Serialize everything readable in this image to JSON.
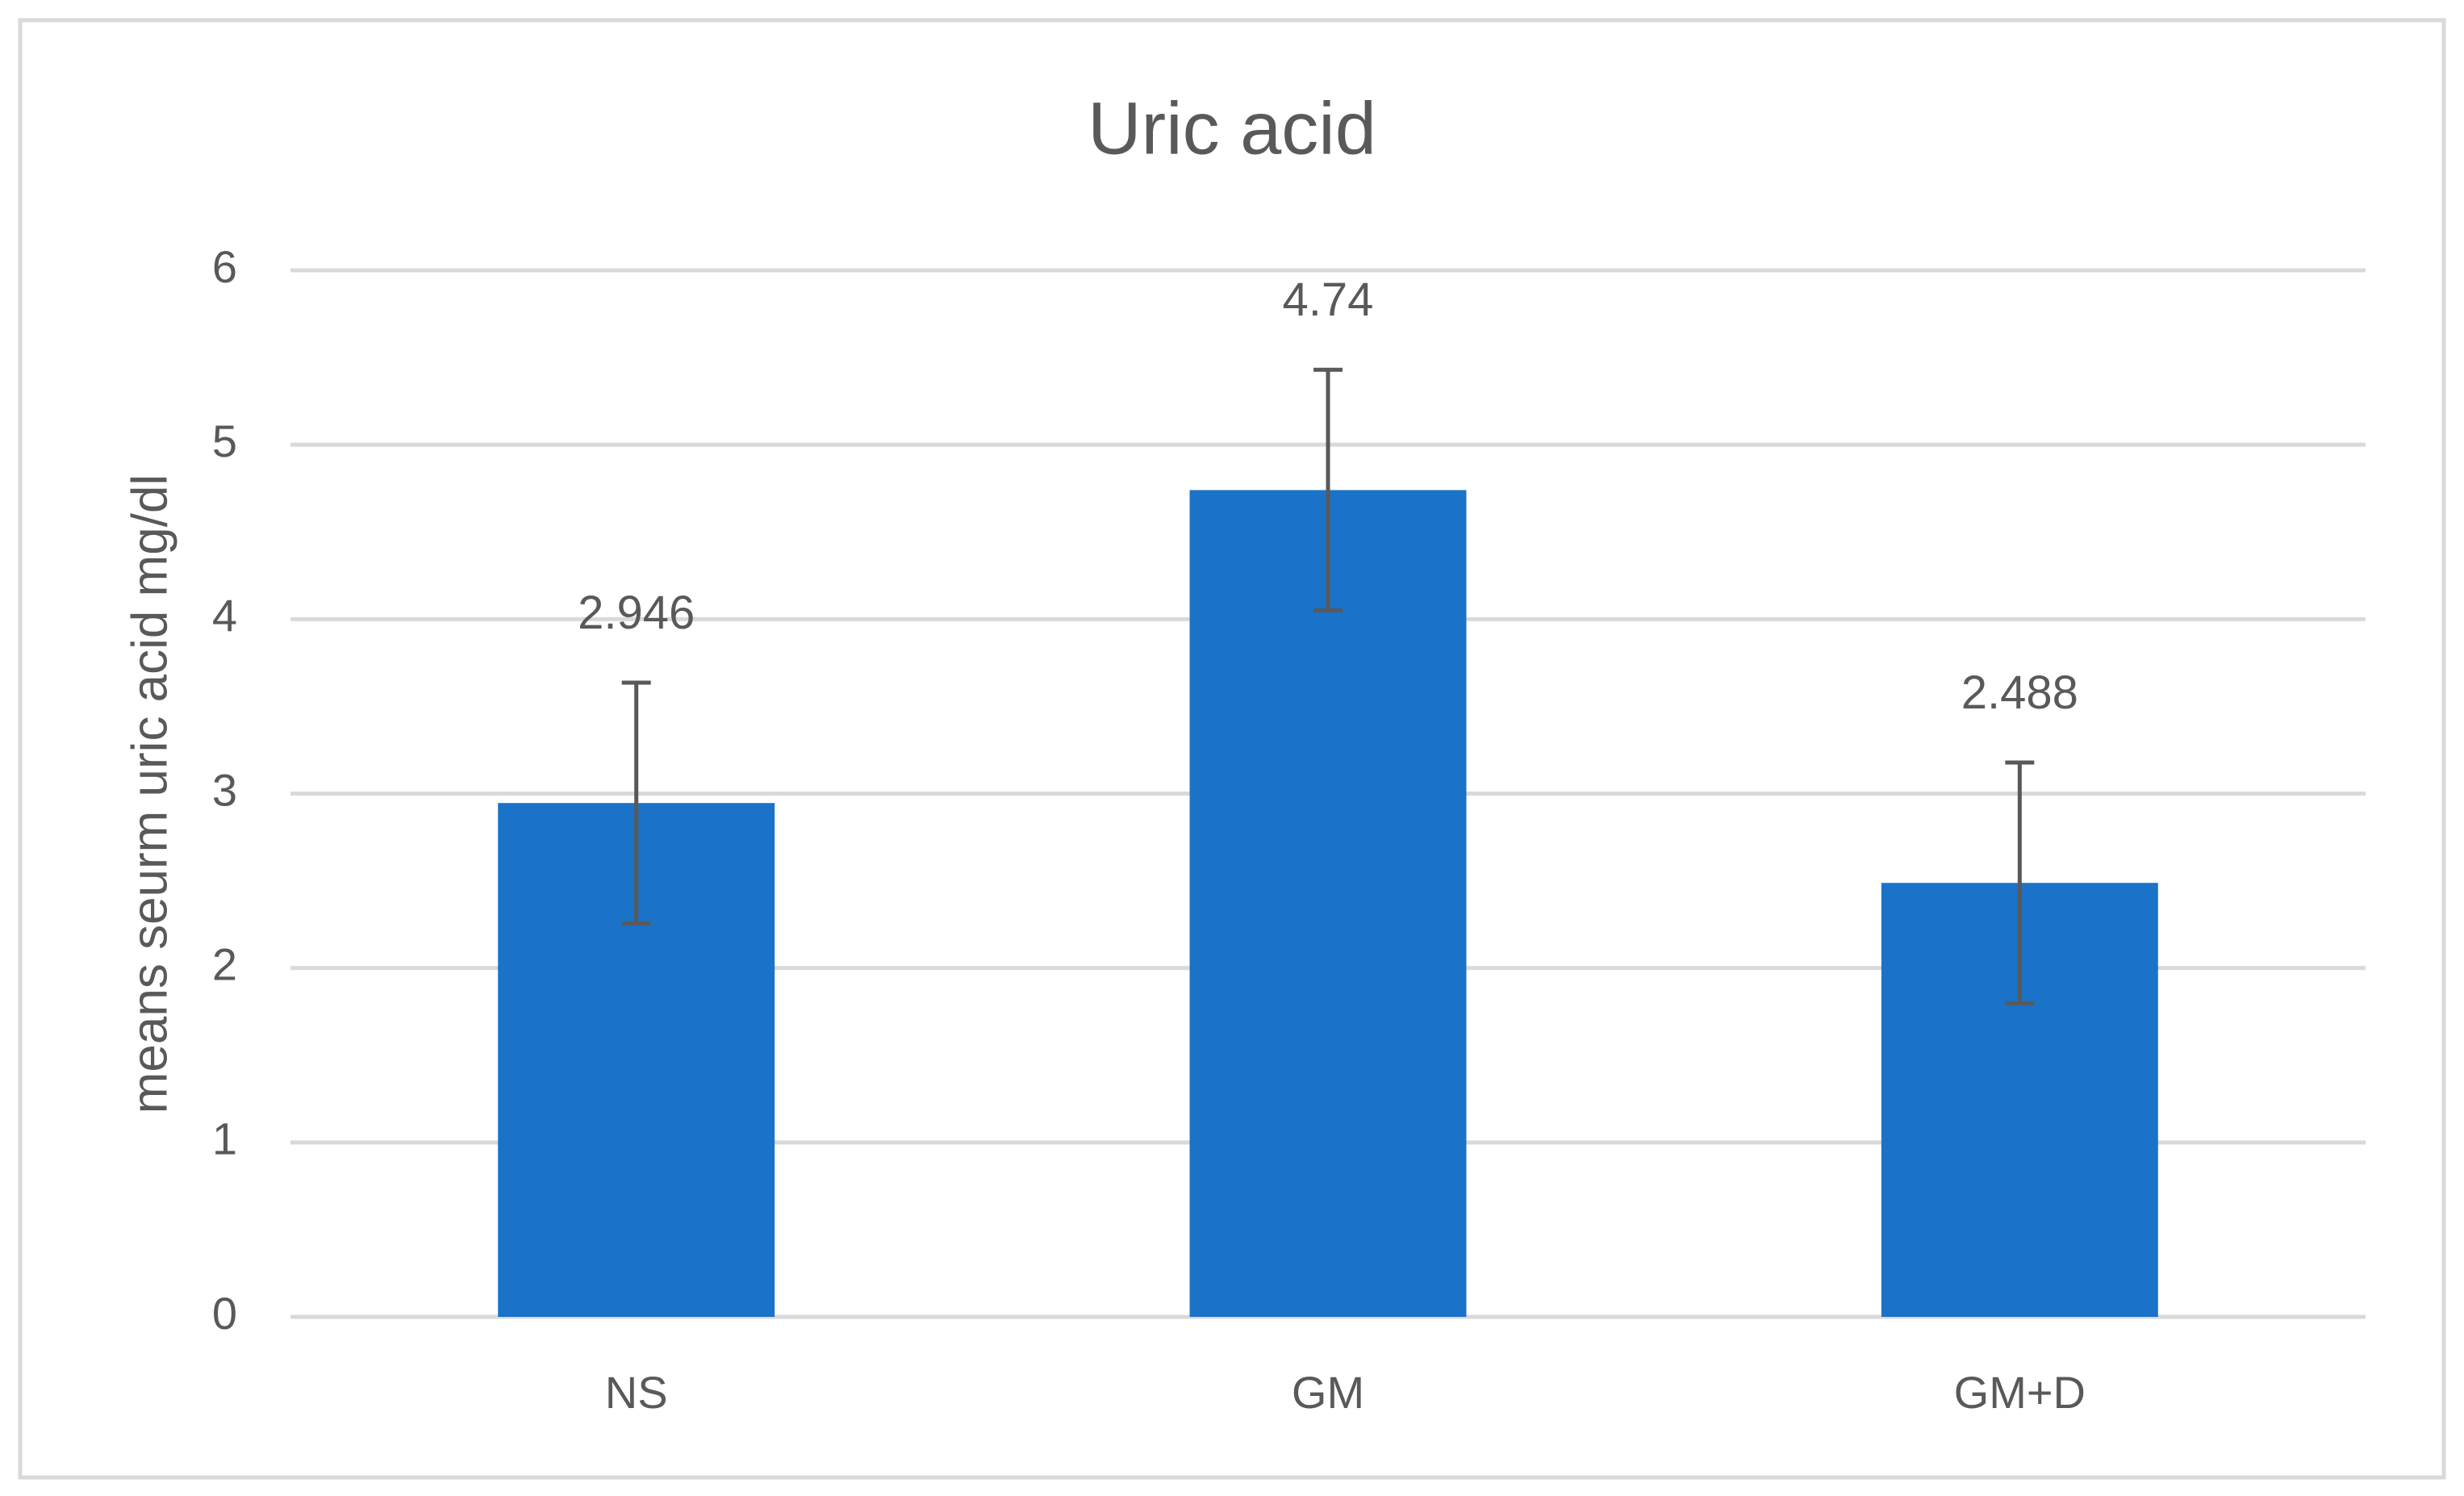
{
  "chart_data": {
    "type": "bar",
    "title": "Uric acid",
    "y_label": "means seurm uric acid mg/dl",
    "categories": [
      "NS",
      "GM",
      "GM+D"
    ],
    "values": [
      2.946,
      4.74,
      2.488
    ],
    "errors": [
      0.69,
      0.69,
      0.69
    ],
    "color": "#1a73c8",
    "ylim": [
      0,
      6
    ],
    "yticks": [
      0,
      1,
      2,
      3,
      4,
      5,
      6
    ],
    "grid": true
  }
}
